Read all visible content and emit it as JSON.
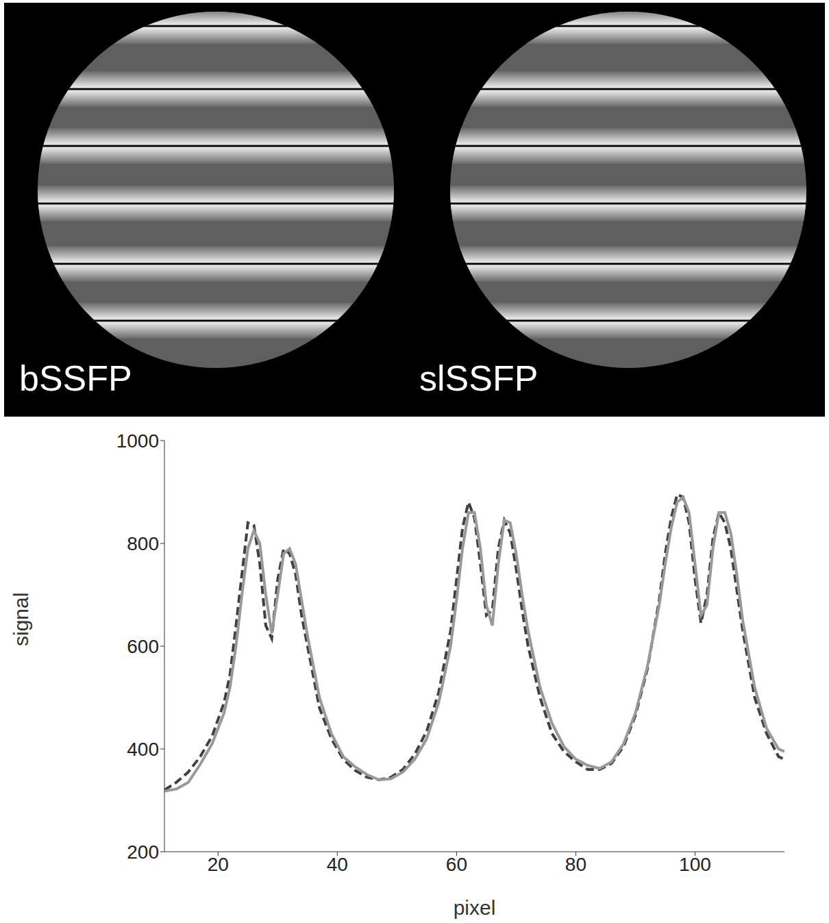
{
  "images": {
    "labels": [
      "bSSFP",
      "slSSFP"
    ]
  },
  "chart_data": {
    "type": "line",
    "xlabel": "pixel",
    "ylabel": "signal",
    "x": [
      11,
      13,
      15,
      17,
      19,
      21,
      22,
      23,
      24,
      25,
      26,
      27,
      28,
      29,
      30,
      31,
      32,
      33,
      34,
      35,
      37,
      39,
      41,
      43,
      45,
      47,
      49,
      51,
      53,
      55,
      57,
      59,
      60,
      61,
      62,
      63,
      64,
      65,
      66,
      67,
      68,
      69,
      70,
      71,
      72,
      74,
      76,
      78,
      80,
      82,
      84,
      86,
      88,
      90,
      92,
      94,
      95,
      96,
      97,
      98,
      99,
      100,
      101,
      102,
      103,
      104,
      105,
      106,
      107,
      108,
      110,
      112,
      114,
      115
    ],
    "series": [
      {
        "color": "#404040",
        "line_style": "dashed",
        "values": [
          320,
          335,
          355,
          385,
          425,
          490,
          545,
          640,
          740,
          840,
          835,
          760,
          640,
          615,
          730,
          790,
          780,
          740,
          660,
          600,
          480,
          420,
          380,
          358,
          345,
          340,
          345,
          360,
          390,
          435,
          510,
          630,
          730,
          830,
          880,
          850,
          760,
          660,
          670,
          790,
          845,
          820,
          750,
          670,
          600,
          500,
          430,
          395,
          375,
          360,
          360,
          372,
          405,
          465,
          555,
          690,
          780,
          850,
          895,
          890,
          840,
          730,
          645,
          700,
          810,
          860,
          840,
          790,
          710,
          630,
          500,
          430,
          385,
          380
        ]
      },
      {
        "color": "#999999",
        "line_style": "solid",
        "values": [
          318,
          322,
          335,
          370,
          410,
          470,
          520,
          600,
          700,
          790,
          825,
          800,
          700,
          625,
          700,
          780,
          790,
          760,
          690,
          620,
          500,
          430,
          385,
          365,
          350,
          340,
          342,
          355,
          380,
          420,
          490,
          600,
          690,
          790,
          860,
          860,
          790,
          680,
          640,
          760,
          845,
          840,
          780,
          700,
          630,
          520,
          450,
          405,
          380,
          368,
          362,
          375,
          410,
          470,
          560,
          680,
          760,
          830,
          880,
          890,
          860,
          760,
          660,
          680,
          790,
          860,
          860,
          820,
          740,
          650,
          520,
          440,
          400,
          395
        ]
      }
    ],
    "xlim": [
      11,
      115
    ],
    "xticks": [
      20,
      40,
      60,
      80,
      100
    ],
    "ylim": [
      200,
      1000
    ],
    "yticks": [
      200,
      400,
      600,
      800,
      1000
    ]
  }
}
